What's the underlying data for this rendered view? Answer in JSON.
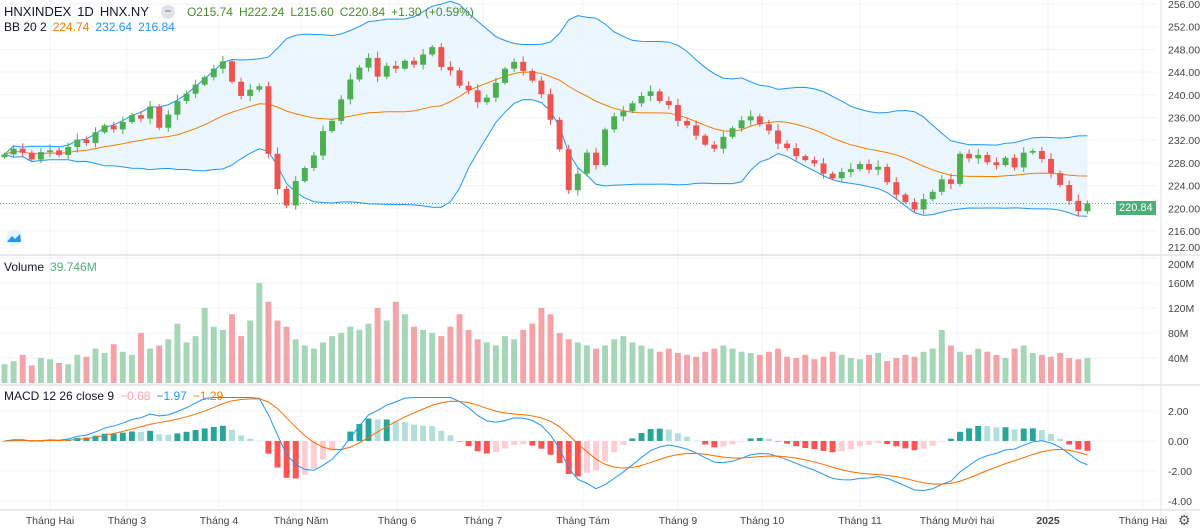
{
  "header": {
    "symbol": "HNXINDEX",
    "interval": "1D",
    "exchange": "HNX.NY",
    "open": "O215.74",
    "high": "H222.24",
    "low": "L215.60",
    "close": "C220.84",
    "change": "+1.30 (+0.59%)"
  },
  "bb": {
    "label": "BB 20 2",
    "basis": "224.74",
    "upper": "232.64",
    "lower": "216.84"
  },
  "volume": {
    "label": "Volume",
    "value": "39.746M"
  },
  "macd": {
    "label": "MACD 12 26 close 9",
    "hist": "−0.68",
    "macd": "−1.97",
    "signal": "−1.29"
  },
  "last_price": "220.84",
  "colors": {
    "up": "#26a69a",
    "up_candle": "#4caf50",
    "down": "#ef5350",
    "bb_basis": "#f57c00",
    "bb_band": "#2196f3",
    "bb_fill": "#e3f2fd",
    "up_volume": "#a5d6b7",
    "down_volume": "#f4a3a8"
  },
  "chart_data": {
    "type": "candlestick",
    "price_axis": {
      "ticks": [
        "256.00",
        "252.00",
        "248.00",
        "244.00",
        "240.00",
        "236.00",
        "232.00",
        "228.00",
        "224.00",
        "220.00",
        "216.00",
        "212.00"
      ],
      "range": [
        212,
        256
      ]
    },
    "volume_axis": {
      "ticks": [
        "200M",
        "160M",
        "120M",
        "80M",
        "40M"
      ],
      "range_millions": [
        0,
        205
      ]
    },
    "macd_axis": {
      "ticks": [
        "2.00",
        "0.00",
        "-2.00",
        "-4.00"
      ],
      "range": [
        -4.5,
        3.0
      ]
    },
    "x_ticks": [
      "Tháng Hai",
      "Tháng 3",
      "Tháng 4",
      "Tháng Năm",
      "Tháng 6",
      "Tháng 7",
      "Tháng Tám",
      "Tháng 9",
      "Tháng 10",
      "Tháng 11",
      "Tháng Mười hai",
      "2025",
      "Tháng Hai"
    ],
    "first_open": 229.0,
    "closes": [
      229.5,
      230.5,
      229.8,
      228.6,
      229.9,
      230.2,
      229.4,
      230.8,
      232.1,
      231.5,
      233.4,
      234.6,
      233.9,
      235.2,
      236.4,
      235.8,
      237.9,
      234.2,
      236.5,
      238.9,
      240.2,
      241.8,
      243.1,
      244.6,
      245.9,
      242.3,
      239.8,
      240.9,
      241.5,
      229.6,
      223.4,
      220.5,
      224.8,
      227.1,
      229.3,
      233.6,
      235.4,
      239.2,
      242.7,
      244.8,
      246.5,
      243.2,
      245.1,
      244.6,
      246.0,
      245.3,
      247.1,
      248.4,
      244.9,
      244.3,
      241.6,
      240.8,
      238.7,
      239.5,
      242.1,
      244.6,
      245.8,
      244.2,
      242.5,
      240.1,
      235.6,
      230.4,
      223.2,
      226.1,
      229.8,
      227.6,
      233.9,
      236.2,
      237.1,
      238.5,
      239.8,
      240.6,
      238.9,
      238.2,
      235.4,
      234.6,
      232.8,
      231.2,
      230.5,
      232.6,
      234.1,
      235.5,
      236.2,
      234.8,
      233.7,
      231.4,
      230.6,
      229.2,
      228.5,
      227.9,
      226.1,
      225.3,
      226.4,
      226.9,
      227.8,
      226.8,
      227.3,
      224.6,
      222.4,
      221.1,
      219.8,
      221.6,
      222.9,
      225.1,
      224.3,
      229.6,
      228.8,
      229.4,
      228.1,
      227.6,
      228.9,
      227.2,
      229.8,
      230.1,
      228.7,
      226.2,
      224.1,
      221.3,
      219.5,
      220.84
    ],
    "volumes_millions": [
      30,
      35,
      45,
      28,
      40,
      38,
      32,
      30,
      45,
      42,
      55,
      48,
      62,
      50,
      45,
      80,
      55,
      60,
      70,
      95,
      65,
      75,
      120,
      90,
      85,
      110,
      75,
      100,
      160,
      130,
      100,
      90,
      70,
      60,
      55,
      65,
      75,
      80,
      90,
      85,
      95,
      120,
      100,
      130,
      110,
      90,
      85,
      80,
      75,
      90,
      110,
      85,
      70,
      65,
      60,
      75,
      70,
      85,
      95,
      120,
      110,
      80,
      70,
      65,
      60,
      55,
      60,
      70,
      75,
      65,
      60,
      55,
      50,
      55,
      48,
      45,
      42,
      50,
      55,
      60,
      55,
      50,
      48,
      45,
      50,
      55,
      42,
      40,
      45,
      38,
      42,
      50,
      45,
      40,
      38,
      45,
      48,
      35,
      40,
      45,
      42,
      50,
      55,
      85,
      60,
      50,
      45,
      55,
      50,
      45,
      40,
      55,
      60,
      48,
      45,
      42,
      48,
      40,
      38,
      39.746
    ]
  }
}
